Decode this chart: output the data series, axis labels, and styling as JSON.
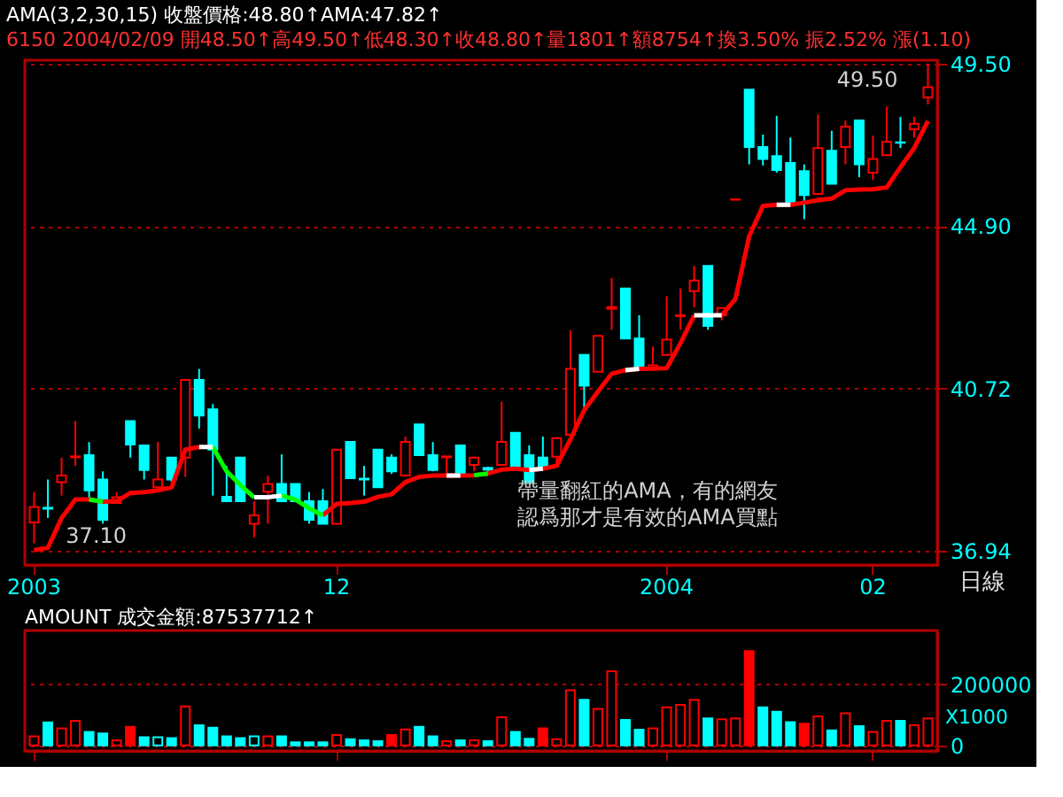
{
  "chart_data": [
    {
      "type": "candlestick",
      "title": "AMA(3,2,30,15) 收盤價格:48.80↑AMA:47.82↑",
      "subtitle": "6150 2004/02/09 開48.50↑高49.50↑低48.30↑收48.80↑量1801↑額8754↑換3.50% 振2.52% 漲(1.10)",
      "xlabel": "日線",
      "categories": [
        "2003",
        null,
        null,
        null,
        null,
        null,
        null,
        null,
        null,
        null,
        null,
        null,
        null,
        null,
        null,
        null,
        null,
        null,
        null,
        null,
        null,
        null,
        "12",
        null,
        null,
        null,
        null,
        null,
        null,
        null,
        null,
        null,
        null,
        null,
        null,
        null,
        null,
        null,
        null,
        null,
        null,
        null,
        null,
        null,
        null,
        null,
        "2004",
        null,
        null,
        null,
        null,
        null,
        null,
        null,
        null,
        null,
        null,
        null,
        null,
        null,
        null,
        "02",
        null,
        null,
        null,
        null
      ],
      "ohlc": [
        [
          37.57,
          38.26,
          37.1,
          37.92
        ],
        [
          37.9,
          38.55,
          37.67,
          37.88
        ],
        [
          38.49,
          39.06,
          38.18,
          38.64
        ],
        [
          39.07,
          39.93,
          38.87,
          39.09
        ],
        [
          39.12,
          39.43,
          38.11,
          38.3
        ],
        [
          38.55,
          38.74,
          37.54,
          37.63
        ],
        [
          38.01,
          38.26,
          38.01,
          38.14
        ],
        [
          39.93,
          39.93,
          39.06,
          39.37
        ],
        [
          39.35,
          39.35,
          38.55,
          38.77
        ],
        [
          38.37,
          39.43,
          38.3,
          38.55
        ],
        [
          39.06,
          39.06,
          38.49,
          38.55
        ],
        [
          39.06,
          40.93,
          38.61,
          40.93
        ],
        [
          40.93,
          41.2,
          39.75,
          40.06
        ],
        [
          40.21,
          40.34,
          38.18,
          39.25
        ],
        [
          38.15,
          38.87,
          38.05,
          38.05
        ],
        [
          39.06,
          39.06,
          38.05,
          38.05
        ],
        [
          37.54,
          38.05,
          37.23,
          37.73
        ],
        [
          38.27,
          38.64,
          37.54,
          38.45
        ],
        [
          38.45,
          39.14,
          38.05,
          38.05
        ],
        [
          38.45,
          38.45,
          38.05,
          38.05
        ],
        [
          38.05,
          38.26,
          37.54,
          37.63
        ],
        [
          38.05,
          38.33,
          37.54,
          37.54
        ],
        [
          37.54,
          39.25,
          37.54,
          39.25
        ],
        [
          39.43,
          39.43,
          38.58,
          38.58
        ],
        [
          38.57,
          38.87,
          38.18,
          38.55
        ],
        [
          39.25,
          39.25,
          38.37,
          38.37
        ],
        [
          39.06,
          39.14,
          38.68,
          38.74
        ],
        [
          38.64,
          39.56,
          38.64,
          39.43
        ],
        [
          39.85,
          39.85,
          39.12,
          39.12
        ],
        [
          39.12,
          39.43,
          38.74,
          38.77
        ],
        [
          39.07,
          39.09,
          38.64,
          39.09
        ],
        [
          39.35,
          39.35,
          38.68,
          38.68
        ],
        [
          38.89,
          39.06,
          38.74,
          39.06
        ],
        [
          38.82,
          38.85,
          38.74,
          38.78
        ],
        [
          38.89,
          40.4,
          38.89,
          39.43
        ],
        [
          39.65,
          39.65,
          38.87,
          38.87
        ],
        [
          39.12,
          39.35,
          38.49,
          38.49
        ],
        [
          39.06,
          39.56,
          38.87,
          38.87
        ],
        [
          39.08,
          39.52,
          38.93,
          39.52
        ],
        [
          39.6,
          42.17,
          39.47,
          41.2
        ],
        [
          41.55,
          41.55,
          40.26,
          40.79
        ],
        [
          41.13,
          42.03,
          41.13,
          42.03
        ],
        [
          42.72,
          43.52,
          42.18,
          42.76
        ],
        [
          43.24,
          43.24,
          41.96,
          41.96
        ],
        [
          41.96,
          42.55,
          41.2,
          41.2
        ],
        [
          41.2,
          41.76,
          41.2,
          41.29
        ],
        [
          41.55,
          43.04,
          41.55,
          41.93
        ],
        [
          42.53,
          43.24,
          42.18,
          42.55
        ],
        [
          43.17,
          43.83,
          42.76,
          43.45
        ],
        [
          43.83,
          43.83,
          42.18,
          42.28
        ],
        [
          42.55,
          42.74,
          42.42,
          42.74
        ],
        [
          45.61,
          45.62,
          45.61,
          45.62
        ],
        [
          48.73,
          48.73,
          46.59,
          47.08
        ],
        [
          47.08,
          47.43,
          46.56,
          46.74
        ],
        [
          46.82,
          47.97,
          46.36,
          46.43
        ],
        [
          46.63,
          47.35,
          45.47,
          45.47
        ],
        [
          46.4,
          46.59,
          45.08,
          45.74
        ],
        [
          45.77,
          48.01,
          45.77,
          47.05
        ],
        [
          46.97,
          47.54,
          46.05,
          46.05
        ],
        [
          47.08,
          47.84,
          46.59,
          47.66
        ],
        [
          47.84,
          47.84,
          46.23,
          46.59
        ],
        [
          46.36,
          47.4,
          46.16,
          46.74
        ],
        [
          46.85,
          48.24,
          46.85,
          47.23
        ],
        [
          47.21,
          47.94,
          47.05,
          47.2
        ],
        [
          47.58,
          47.94,
          47.35,
          47.74
        ],
        [
          48.5,
          49.5,
          48.3,
          48.8
        ]
      ],
      "colors": [
        "#ff0000",
        "#00ffff",
        "#ff0000",
        "#ff0000",
        "#00ffff",
        "#00ffff",
        "#ff0000",
        "#00ffff",
        "#00ffff",
        "#ff0000",
        "#00ffff",
        "#ff0000",
        "#00ffff",
        "#00ffff",
        "#00ffff",
        "#00ffff",
        "#ff0000",
        "#ff0000",
        "#00ffff",
        "#00ffff",
        "#00ffff",
        "#00ffff",
        "#ff0000",
        "#00ffff",
        "#00ffff",
        "#00ffff",
        "#00ffff",
        "#ff0000",
        "#00ffff",
        "#00ffff",
        "#ff0000",
        "#00ffff",
        "#ff0000",
        "#00ffff",
        "#ff0000",
        "#00ffff",
        "#00ffff",
        "#00ffff",
        "#ff0000",
        "#ff0000",
        "#00ffff",
        "#ff0000",
        "#ff0000",
        "#00ffff",
        "#00ffff",
        "#ff0000",
        "#ff0000",
        "#ff0000",
        "#ff0000",
        "#00ffff",
        "#ff0000",
        "#ff0000",
        "#00ffff",
        "#00ffff",
        "#00ffff",
        "#00ffff",
        "#00ffff",
        "#ff0000",
        "#00ffff",
        "#ff0000",
        "#00ffff",
        "#ff0000",
        "#ff0000",
        "#00ffff",
        "#ff0000",
        "#ff0000"
      ],
      "series": [
        {
          "type": "line",
          "color": "#ff0000",
          "values": [
            36.95,
            37.0,
            37.67,
            38.09,
            38.09,
            38.04,
            38.05,
            38.24,
            38.26,
            38.3,
            38.37,
            39.25,
            39.31,
            null,
            null,
            null,
            null,
            null,
            null,
            null,
            null,
            37.73,
            37.99,
            38.01,
            38.04,
            38.15,
            38.21,
            38.49,
            38.61,
            38.64,
            38.64,
            38.64,
            38.65,
            38.69,
            38.78,
            38.8,
            38.77,
            38.8,
            38.87,
            39.49,
            40.19,
            40.64,
            41.08,
            41.17,
            41.2,
            41.21,
            41.22,
            41.84,
            42.55,
            null,
            42.55,
            42.97,
            44.62,
            45.44,
            45.47,
            45.47,
            45.53,
            45.6,
            45.64,
            45.87,
            45.89,
            45.9,
            45.95,
            46.51,
            47.05,
            47.82
          ]
        },
        {
          "type": "line",
          "color": "#00ff00",
          "values": [
            null,
            null,
            null,
            null,
            38.09,
            38.04,
            null,
            null,
            null,
            null,
            null,
            null,
            null,
            39.31,
            38.74,
            38.42,
            38.14,
            null,
            38.18,
            38.09,
            37.89,
            37.73,
            null,
            null,
            null,
            null,
            null,
            null,
            null,
            null,
            null,
            null,
            38.65,
            38.69,
            null,
            null,
            null,
            null,
            null,
            null,
            null,
            null,
            null,
            null,
            null,
            null,
            null,
            null,
            null,
            null,
            null,
            null,
            null,
            null,
            null,
            null,
            null,
            null,
            null,
            null,
            null,
            null,
            null,
            null,
            null,
            null
          ]
        },
        {
          "type": "line",
          "color": "#ffffff",
          "values": [
            null,
            null,
            null,
            null,
            null,
            null,
            null,
            null,
            null,
            null,
            null,
            null,
            39.31,
            39.31,
            null,
            null,
            null,
            null,
            null,
            null,
            null,
            null,
            null,
            null,
            null,
            null,
            null,
            null,
            null,
            null,
            38.64,
            38.64,
            null,
            null,
            null,
            null,
            38.77,
            38.8,
            null,
            null,
            null,
            null,
            null,
            41.17,
            41.2,
            null,
            null,
            null,
            null,
            null,
            null,
            null,
            null,
            null,
            45.47,
            45.47,
            null,
            null,
            null,
            null,
            null,
            null,
            null,
            null,
            null,
            null
          ]
        },
        {
          "type": "line",
          "color": "#ffffff",
          "values": [
            null,
            null,
            null,
            null,
            null,
            null,
            null,
            null,
            null,
            null,
            null,
            null,
            null,
            null,
            null,
            null,
            38.14,
            38.14,
            38.18,
            null,
            null,
            null,
            null,
            null,
            null,
            null,
            null,
            null,
            null,
            null,
            null,
            null,
            null,
            null,
            null,
            null,
            null,
            null,
            null,
            null,
            null,
            null,
            null,
            null,
            null,
            null,
            null,
            null,
            42.55,
            42.55,
            42.55,
            null,
            null,
            null,
            null,
            null,
            null,
            null,
            null,
            null,
            null,
            null,
            null,
            null,
            null,
            null
          ]
        }
      ],
      "ylim": [
        36.62,
        49.6
      ],
      "yticks": [
        36.94,
        40.72,
        {
          "value": 44.9,
          "label": "44.90"
        },
        {
          "value": 49.5,
          "label": "49.50"
        }
      ],
      "log": "y",
      "grid": "y",
      "annotations": [
        "49.50",
        "37.10",
        "帶量翻紅的AMA，有的網友",
        "認爲那才是有效的AMA買點"
      ]
    },
    {
      "type": "bar",
      "title": "AMOUNT 成交金額:87537712↑",
      "ylabel": "X1000",
      "categories": [
        "2003",
        null,
        null,
        null,
        null,
        null,
        null,
        null,
        null,
        null,
        null,
        null,
        null,
        null,
        null,
        null,
        null,
        null,
        null,
        null,
        null,
        null,
        "12",
        null,
        null,
        null,
        null,
        null,
        null,
        null,
        null,
        null,
        null,
        null,
        null,
        null,
        null,
        null,
        null,
        null,
        null,
        null,
        null,
        null,
        null,
        null,
        "2004",
        null,
        null,
        null,
        null,
        null,
        null,
        null,
        null,
        null,
        null,
        null,
        null,
        null,
        null,
        "02",
        null,
        null,
        null,
        null
      ],
      "values": [
        30000,
        75000,
        56000,
        80000,
        44000,
        39000,
        17000,
        61000,
        27000,
        27000,
        24000,
        127000,
        66000,
        58000,
        30000,
        24000,
        30000,
        30000,
        30000,
        10000,
        10000,
        10000,
        34000,
        20000,
        17000,
        14000,
        34000,
        52000,
        61000,
        30000,
        14000,
        17000,
        17000,
        14000,
        92000,
        44000,
        22000,
        56000,
        20000,
        180000,
        149000,
        119000,
        242000,
        83000,
        51000,
        56000,
        124000,
        132000,
        149000,
        88000,
        85000,
        88000,
        308000,
        124000,
        110000,
        76000,
        71000,
        95000,
        49000,
        105000,
        63000,
        44000,
        80000,
        80000,
        66000,
        88000
      ],
      "colors": [
        "#ff0000",
        "#00ffff",
        "#ff0000",
        "#ff0000",
        "#00ffff",
        "#00ffff",
        "#ff0000",
        "#ff0000",
        "#00ffff",
        "#00ffff",
        "#00ffff",
        "#ff0000",
        "#00ffff",
        "#00ffff",
        "#00ffff",
        "#00ffff",
        "#00ffff",
        "#ff0000",
        "#00ffff",
        "#00ffff",
        "#00ffff",
        "#00ffff",
        "#ff0000",
        "#00ffff",
        "#00ffff",
        "#00ffff",
        "#ff0000",
        "#ff0000",
        "#00ffff",
        "#00ffff",
        "#ff0000",
        "#00ffff",
        "#ff0000",
        "#00ffff",
        "#ff0000",
        "#00ffff",
        "#00ffff",
        "#ff0000",
        "#ff0000",
        "#ff0000",
        "#00ffff",
        "#ff0000",
        "#ff0000",
        "#00ffff",
        "#00ffff",
        "#ff0000",
        "#ff0000",
        "#ff0000",
        "#ff0000",
        "#00ffff",
        "#ff0000",
        "#ff0000",
        "#ff0000",
        "#00ffff",
        "#00ffff",
        "#00ffff",
        "#ff0000",
        "#ff0000",
        "#00ffff",
        "#ff0000",
        "#00ffff",
        "#ff0000",
        "#ff0000",
        "#00ffff",
        "#ff0000",
        "#ff0000"
      ],
      "ylim": [
        -18000,
        375000
      ],
      "yticks": [
        0,
        200000
      ],
      "grid": "y",
      "tick_labels": "y"
    }
  ]
}
